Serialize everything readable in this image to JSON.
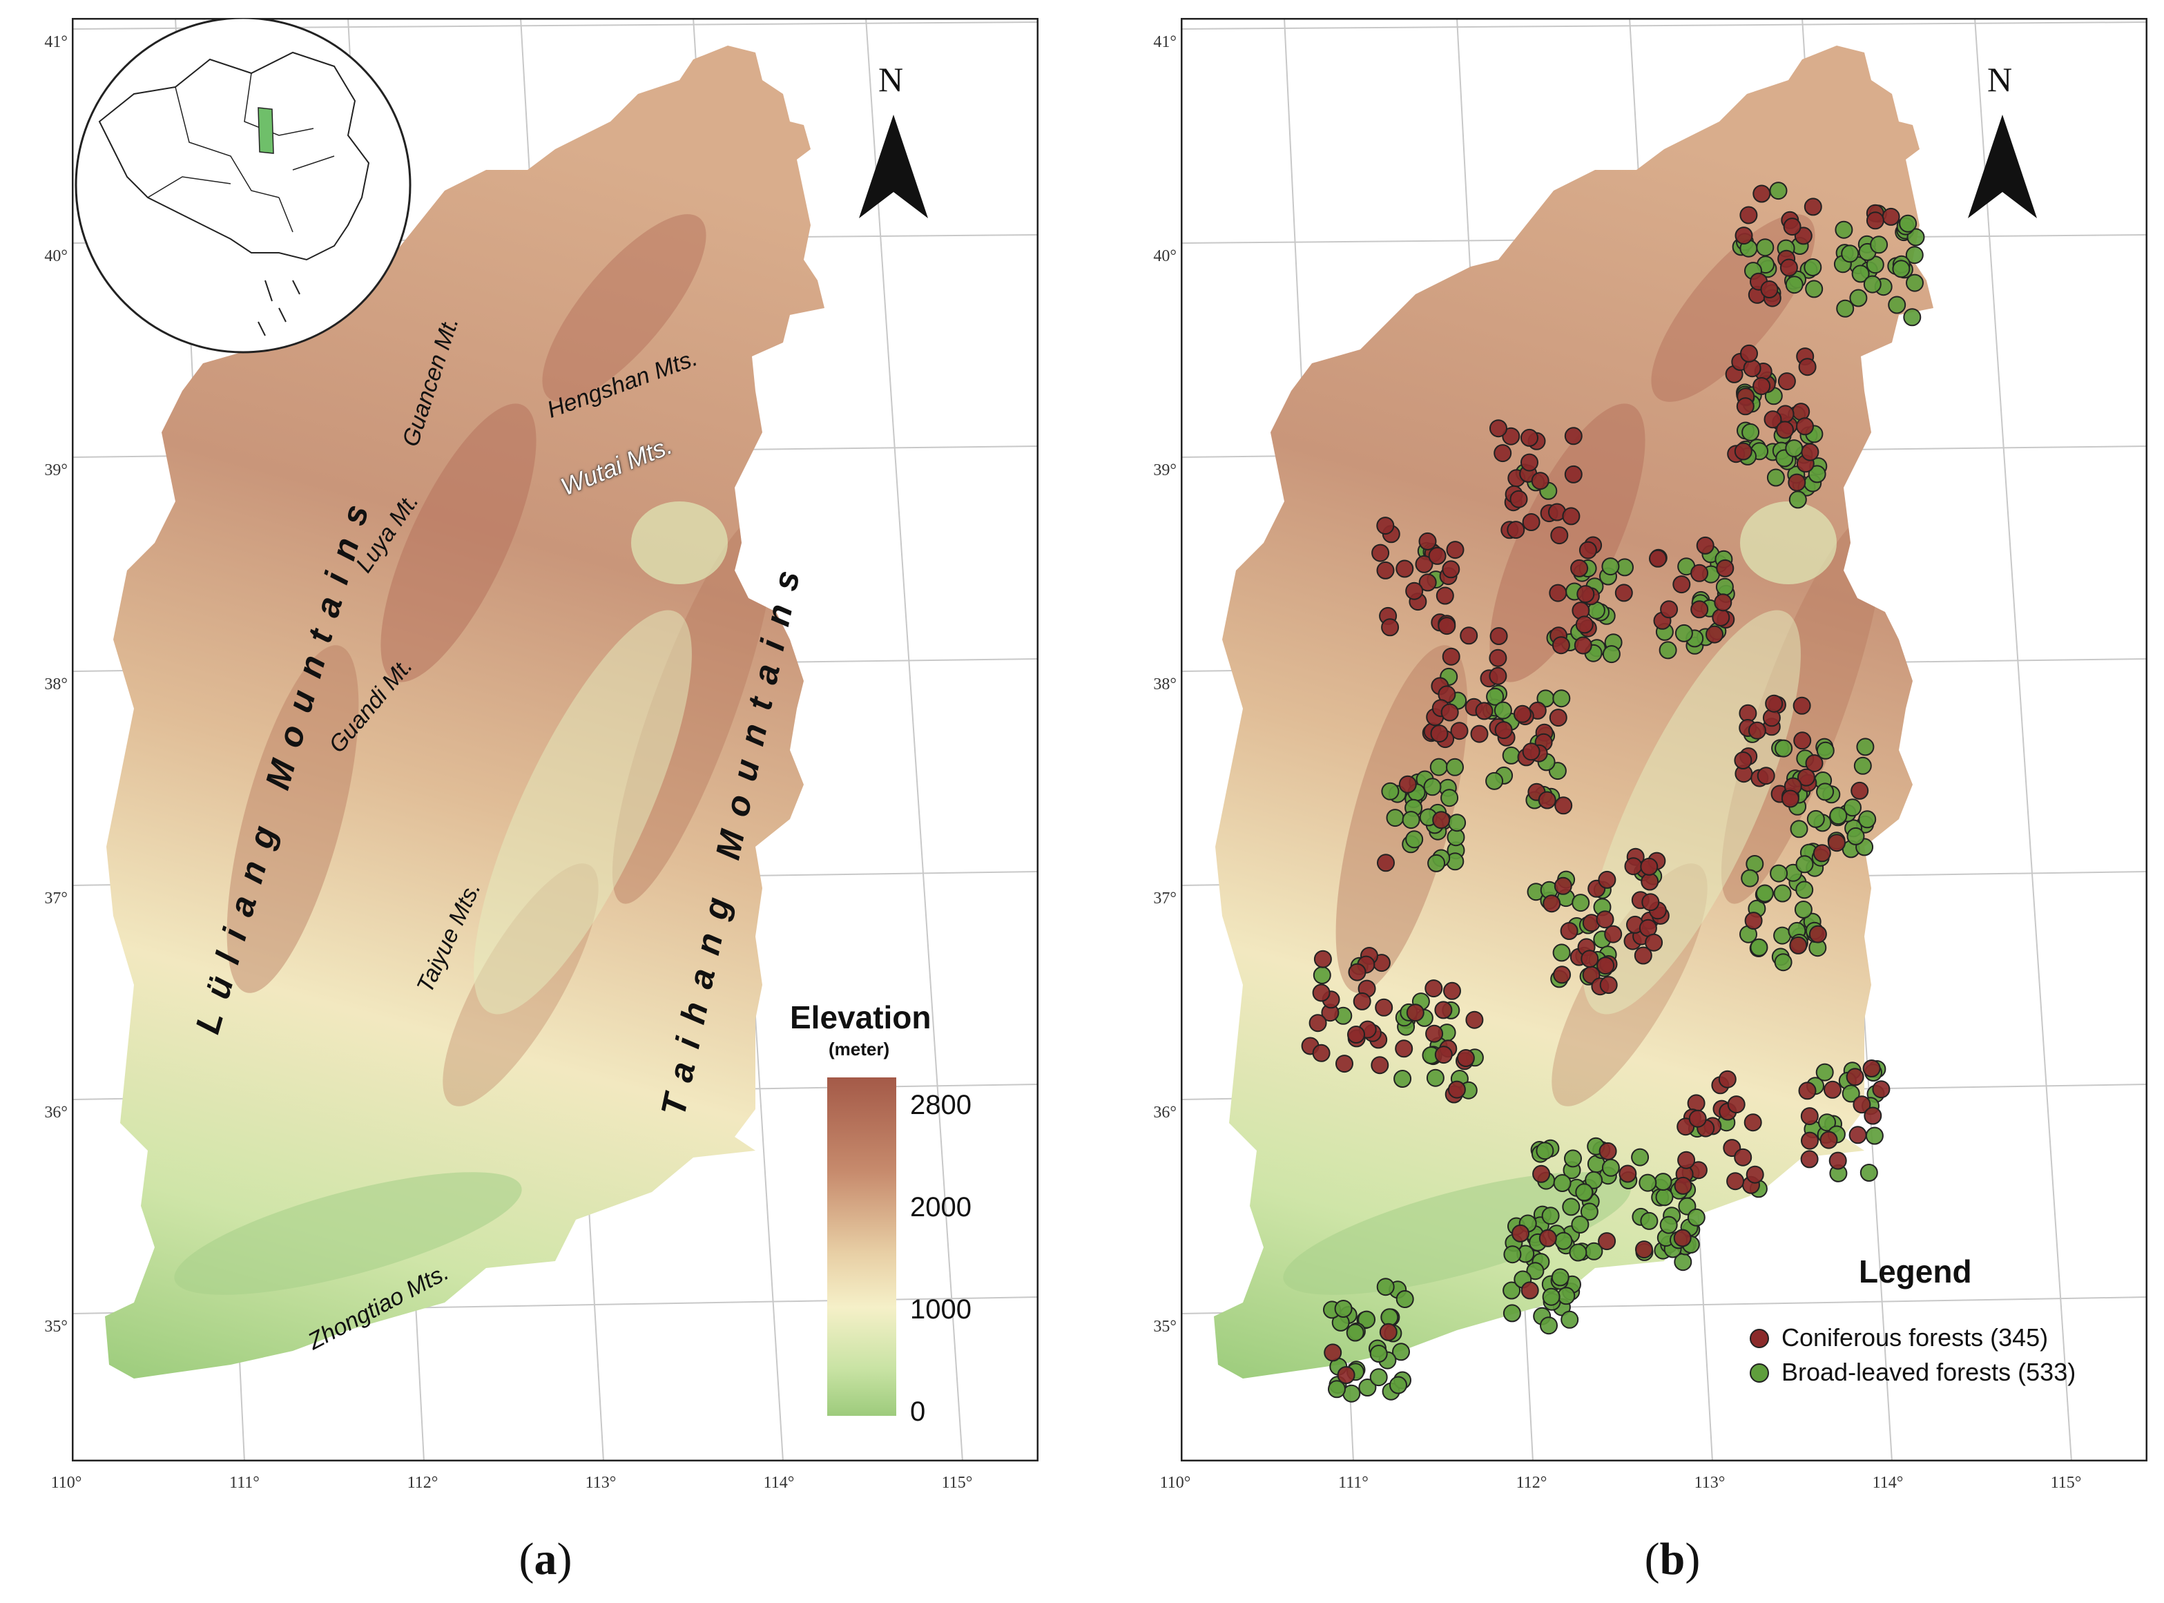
{
  "lat_labels": [
    "41°",
    "40°",
    "39°",
    "38°",
    "37°",
    "36°",
    "35°"
  ],
  "lon_labels": [
    "110°",
    "111°",
    "112°",
    "113°",
    "114°",
    "115°"
  ],
  "north": "N",
  "panel_a": {
    "caption_letter": "a",
    "mountains": {
      "luliang": "Lüliang Mountains",
      "taihang": "Taihang Mountains",
      "guancen": "Guancen Mt.",
      "hengshan": "Hengshan Mts.",
      "wutai": "Wutai Mts.",
      "luya": "Luya Mt.",
      "guandi": "Guandi Mt.",
      "taiyue": "Taiyue Mts.",
      "zhongtiao": "Zhongtiao Mts."
    },
    "elevation": {
      "title": "Elevation",
      "unit": "(meter)",
      "ticks": [
        "2800",
        "2000",
        "1000",
        "0"
      ],
      "colors": [
        "#a45a48",
        "#c78b6d",
        "#e8cfa5",
        "#f5f0c8",
        "#c9e3a4",
        "#9dcb7c"
      ]
    },
    "inset_highlight_color": "#6fbf6a"
  },
  "panel_b": {
    "caption_letter": "b",
    "legend": {
      "title": "Legend",
      "coniferous": "Coniferous forests (345)",
      "broadleaved": "Broad-leaved forests (533)"
    },
    "colors": {
      "coniferous": "#8b2a2a",
      "broadleaved": "#5f9e3c"
    },
    "counts": {
      "coniferous": 345,
      "broadleaved": 533
    },
    "clusters": [
      {
        "lon": 111.0,
        "lat": 37.3,
        "type": "broadleaved"
      },
      {
        "lon": 111.05,
        "lat": 38.4,
        "type": "coniferous"
      },
      {
        "lon": 111.3,
        "lat": 37.9,
        "type": "coniferous"
      },
      {
        "lon": 111.6,
        "lat": 37.6,
        "type": "mixed"
      },
      {
        "lon": 111.75,
        "lat": 38.85,
        "type": "coniferous"
      },
      {
        "lon": 111.8,
        "lat": 36.75,
        "type": "mixed"
      },
      {
        "lon": 112.1,
        "lat": 36.85,
        "type": "coniferous"
      },
      {
        "lon": 111.7,
        "lat": 35.5,
        "type": "broadleaved"
      },
      {
        "lon": 112.2,
        "lat": 35.45,
        "type": "broadleaved"
      },
      {
        "lon": 111.5,
        "lat": 35.15,
        "type": "broadleaved"
      },
      {
        "lon": 111.0,
        "lat": 36.25,
        "type": "mixed"
      },
      {
        "lon": 110.5,
        "lat": 36.4,
        "type": "coniferous"
      },
      {
        "lon": 113.0,
        "lat": 37.55,
        "type": "coniferous"
      },
      {
        "lon": 113.3,
        "lat": 37.35,
        "type": "broadleaved"
      },
      {
        "lon": 113.1,
        "lat": 39.2,
        "type": "coniferous"
      },
      {
        "lon": 113.15,
        "lat": 39.0,
        "type": "broadleaved"
      },
      {
        "lon": 113.25,
        "lat": 35.85,
        "type": "mixed"
      },
      {
        "lon": 113.0,
        "lat": 36.85,
        "type": "broadleaved"
      },
      {
        "lon": 113.2,
        "lat": 39.95,
        "type": "mixed"
      },
      {
        "lon": 113.75,
        "lat": 39.85,
        "type": "broadleaved"
      },
      {
        "lon": 112.0,
        "lat": 38.3,
        "type": "mixed"
      },
      {
        "lon": 112.6,
        "lat": 38.3,
        "type": "mixed"
      },
      {
        "lon": 112.55,
        "lat": 35.8,
        "type": "coniferous"
      },
      {
        "lon": 110.5,
        "lat": 34.85,
        "type": "broadleaved"
      }
    ]
  }
}
